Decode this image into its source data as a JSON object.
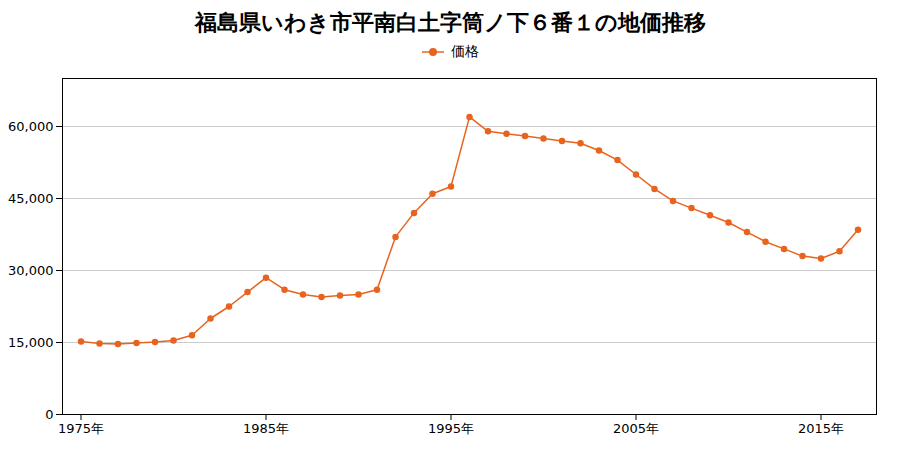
{
  "chart_data": {
    "type": "line",
    "title": "福島県いわき市平南白土字筒ノ下６番１の地価推移",
    "x": [
      1975,
      1976,
      1977,
      1978,
      1979,
      1980,
      1981,
      1982,
      1983,
      1984,
      1985,
      1986,
      1987,
      1988,
      1989,
      1990,
      1991,
      1992,
      1993,
      1994,
      1995,
      1996,
      1997,
      1998,
      1999,
      2000,
      2001,
      2002,
      2003,
      2004,
      2005,
      2006,
      2007,
      2008,
      2009,
      2010,
      2011,
      2012,
      2013,
      2014,
      2015,
      2016,
      2017
    ],
    "series": [
      {
        "name": "価格",
        "color": "#e8641e",
        "marker": "circle",
        "values": [
          15200,
          14800,
          14700,
          14900,
          15100,
          15400,
          16500,
          20000,
          22500,
          25500,
          28500,
          26000,
          25000,
          24500,
          24800,
          25000,
          26000,
          37000,
          42000,
          46000,
          47500,
          62000,
          59000,
          58500,
          58000,
          57500,
          57000,
          56500,
          55000,
          53000,
          50000,
          47000,
          44500,
          43000,
          41500,
          40000,
          38000,
          36000,
          34500,
          33000,
          32500,
          34000,
          38500
        ]
      }
    ],
    "xlim": [
      1974,
      2018
    ],
    "xticks": [
      {
        "value": 1975,
        "label": "1975年"
      },
      {
        "value": 1985,
        "label": "1985年"
      },
      {
        "value": 1995,
        "label": "1995年"
      },
      {
        "value": 2005,
        "label": "2005年"
      },
      {
        "value": 2015,
        "label": "2015年"
      }
    ],
    "ylim": [
      0,
      70000
    ],
    "yticks": [
      0,
      {
        "value": 15000,
        "label": "15,000"
      },
      {
        "value": 30000,
        "label": "30,000"
      },
      {
        "value": 45000,
        "label": "45,000"
      },
      {
        "value": 60000,
        "label": "60,000"
      }
    ],
    "grid": true,
    "legend": "top"
  }
}
